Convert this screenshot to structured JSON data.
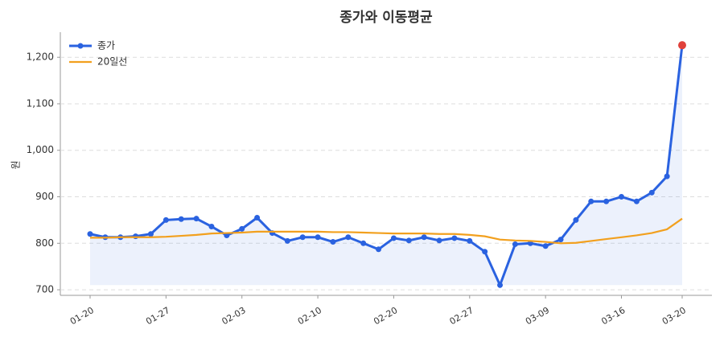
{
  "chart_data": {
    "type": "line",
    "title": "종가와 이동평균",
    "ylabel": "원",
    "categories": [
      "01-20",
      null,
      null,
      null,
      null,
      "01-27",
      null,
      null,
      null,
      null,
      "02-03",
      null,
      null,
      null,
      null,
      "02-10",
      null,
      null,
      null,
      null,
      "02-20",
      null,
      null,
      null,
      null,
      "02-27",
      null,
      null,
      null,
      null,
      "03-09",
      null,
      null,
      null,
      null,
      "03-16",
      null,
      null,
      null,
      "03-20"
    ],
    "series": [
      {
        "name": "종가",
        "color": "#2a62e0",
        "values": [
          820,
          813,
          813,
          815,
          820,
          850,
          852,
          853,
          836,
          817,
          831,
          855,
          822,
          805,
          813,
          813,
          803,
          813,
          800,
          787,
          811,
          806,
          813,
          806,
          811,
          805,
          782,
          710,
          798,
          800,
          794,
          808,
          850,
          890,
          890,
          900,
          890,
          909,
          944,
          1226
        ]
      },
      {
        "name": "20일선",
        "color": "#f2a01e",
        "values": [
          812,
          812,
          813,
          813,
          813,
          814,
          816,
          818,
          821,
          822,
          823,
          825,
          825,
          825,
          825,
          825,
          824,
          824,
          823,
          822,
          821,
          821,
          821,
          820,
          820,
          818,
          815,
          808,
          806,
          805,
          803,
          800,
          801,
          805,
          809,
          813,
          817,
          822,
          830,
          853
        ]
      }
    ],
    "highlight_color": "#e0413b",
    "ylim": [
      688,
      1254
    ],
    "yticks": [
      700,
      800,
      900,
      {
        "value": 1000,
        "label": "1,000"
      },
      {
        "value": 1100,
        "label": "1,100"
      },
      {
        "value": 1200,
        "label": "1,200"
      }
    ],
    "grid": true,
    "legend": "upper left"
  }
}
